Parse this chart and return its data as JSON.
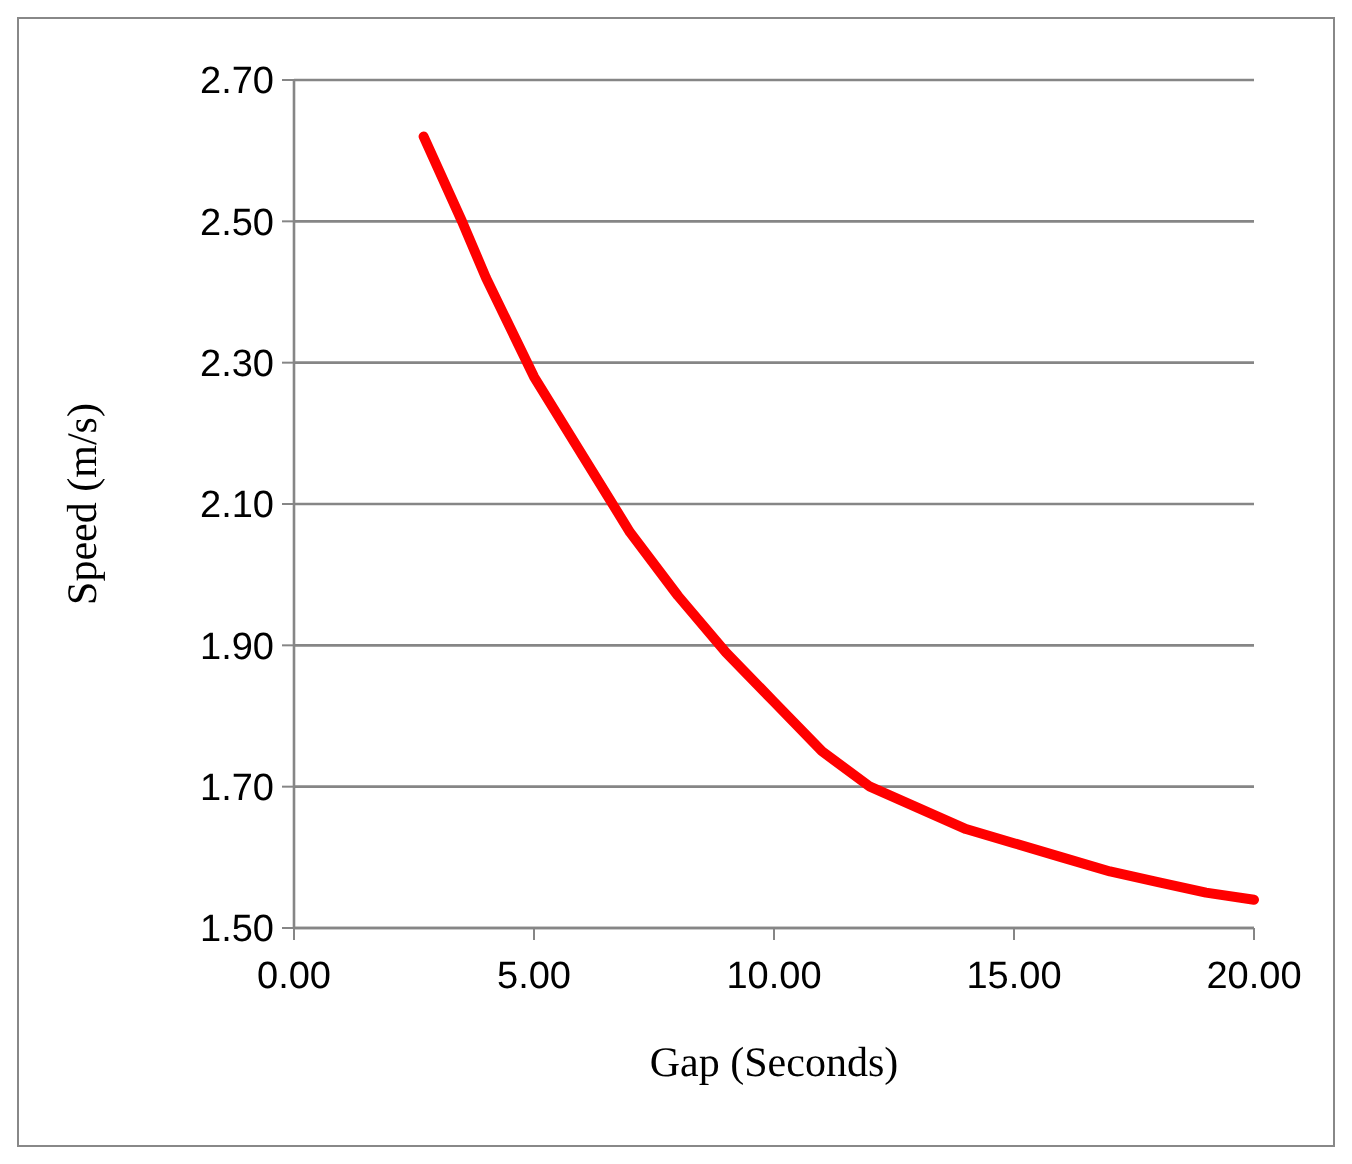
{
  "chart_data": {
    "type": "line",
    "xlabel": "Gap (Seconds)",
    "ylabel": "Speed (m/s)",
    "xlim": [
      0,
      20
    ],
    "xticks": [
      {
        "value": 0,
        "label": "0.00"
      },
      {
        "value": 5,
        "label": "5.00"
      },
      {
        "value": 10,
        "label": "10.00"
      },
      {
        "value": 15,
        "label": "15.00"
      },
      {
        "value": 20,
        "label": "20.00"
      }
    ],
    "ylim": [
      1.5,
      2.7
    ],
    "yticks": [
      {
        "value": 1.5,
        "label": "1.50"
      },
      {
        "value": 1.7,
        "label": "1.70"
      },
      {
        "value": 1.9,
        "label": "1.90"
      },
      {
        "value": 2.1,
        "label": "2.10"
      },
      {
        "value": 2.3,
        "label": "2.30"
      },
      {
        "value": 2.5,
        "label": "2.50"
      },
      {
        "value": 2.7,
        "label": "2.70"
      }
    ],
    "grid": "y",
    "marker": "none",
    "line_style": "solid",
    "x": [
      2.7,
      3.5,
      4,
      5,
      6,
      7,
      8,
      9,
      10,
      11,
      12,
      13,
      14,
      15,
      16,
      17,
      18,
      19,
      20
    ],
    "series": [
      {
        "color": "#ff0000",
        "values": [
          2.62,
          2.5,
          2.42,
          2.28,
          2.17,
          2.06,
          1.97,
          1.89,
          1.82,
          1.75,
          1.7,
          1.67,
          1.64,
          1.62,
          1.6,
          1.58,
          1.565,
          1.55,
          1.54
        ]
      }
    ]
  }
}
